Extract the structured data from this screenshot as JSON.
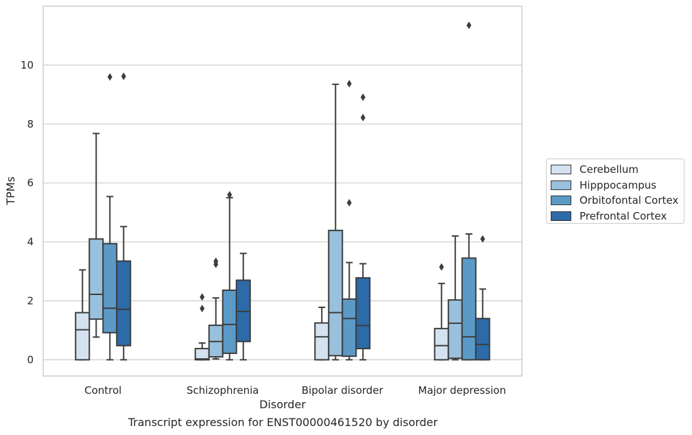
{
  "chart_data": {
    "type": "box",
    "title": "",
    "xlabel": "Disorder",
    "ylabel": "TPMs",
    "caption": "Transcript expression for ENST00000461520 by disorder",
    "ylim": [
      -0.55,
      12.0
    ],
    "yticks": [
      0,
      2,
      4,
      6,
      8,
      10
    ],
    "grid": "horizontal",
    "legend_position": "right",
    "categories": [
      "Control",
      "Schizophrenia",
      "Bipolar disorder",
      "Major depression"
    ],
    "series": [
      {
        "name": "Cerebellum",
        "color": "#d4e2f0",
        "boxes": [
          {
            "whislo": 0,
            "q1": 0,
            "med": 1.02,
            "q3": 1.6,
            "whishi": 3.05,
            "fliers": []
          },
          {
            "whislo": 0,
            "q1": 0.0,
            "med": 0.03,
            "q3": 0.38,
            "whishi": 0.57,
            "fliers": [
              1.74,
              2.13
            ]
          },
          {
            "whislo": 0,
            "q1": 0,
            "med": 0.78,
            "q3": 1.25,
            "whishi": 1.78,
            "fliers": []
          },
          {
            "whislo": 0,
            "q1": 0,
            "med": 0.48,
            "q3": 1.06,
            "whishi": 2.59,
            "fliers": [
              3.15
            ]
          }
        ]
      },
      {
        "name": "Hipppocampus",
        "color": "#99c0dc",
        "boxes": [
          {
            "whislo": 0.77,
            "q1": 1.38,
            "med": 2.22,
            "q3": 4.1,
            "whishi": 7.68,
            "fliers": []
          },
          {
            "whislo": 0.03,
            "q1": 0.1,
            "med": 0.62,
            "q3": 1.17,
            "whishi": 2.1,
            "fliers": [
              3.24,
              3.34
            ]
          },
          {
            "whislo": 0,
            "q1": 0.14,
            "med": 1.6,
            "q3": 4.39,
            "whishi": 9.35,
            "fliers": []
          },
          {
            "whislo": 0,
            "q1": 0.05,
            "med": 1.24,
            "q3": 2.03,
            "whishi": 4.2,
            "fliers": []
          }
        ]
      },
      {
        "name": "Orbitofontal Cortex",
        "color": "#5b9ac6",
        "boxes": [
          {
            "whislo": 0,
            "q1": 0.92,
            "med": 1.75,
            "q3": 3.94,
            "whishi": 5.54,
            "fliers": [
              9.6
            ]
          },
          {
            "whislo": 0,
            "q1": 0.22,
            "med": 1.2,
            "q3": 2.36,
            "whishi": 5.5,
            "fliers": [
              5.6
            ]
          },
          {
            "whislo": 0,
            "q1": 0.12,
            "med": 1.4,
            "q3": 2.06,
            "whishi": 3.3,
            "fliers": [
              5.33,
              9.37
            ]
          },
          {
            "whislo": 0,
            "q1": 0,
            "med": 0.78,
            "q3": 3.45,
            "whishi": 4.27,
            "fliers": [
              11.35
            ]
          }
        ]
      },
      {
        "name": "Prefrontal Cortex",
        "color": "#2c6aa8",
        "boxes": [
          {
            "whislo": 0,
            "q1": 0.48,
            "med": 1.71,
            "q3": 3.35,
            "whishi": 4.52,
            "fliers": [
              9.62
            ]
          },
          {
            "whislo": 0,
            "q1": 0.62,
            "med": 1.64,
            "q3": 2.7,
            "whishi": 3.61,
            "fliers": []
          },
          {
            "whislo": 0,
            "q1": 0.38,
            "med": 1.16,
            "q3": 2.78,
            "whishi": 3.26,
            "fliers": [
              8.22,
              8.91
            ]
          },
          {
            "whislo": 0,
            "q1": 0,
            "med": 0.52,
            "q3": 1.4,
            "whishi": 2.4,
            "fliers": [
              4.1
            ]
          }
        ]
      }
    ]
  }
}
